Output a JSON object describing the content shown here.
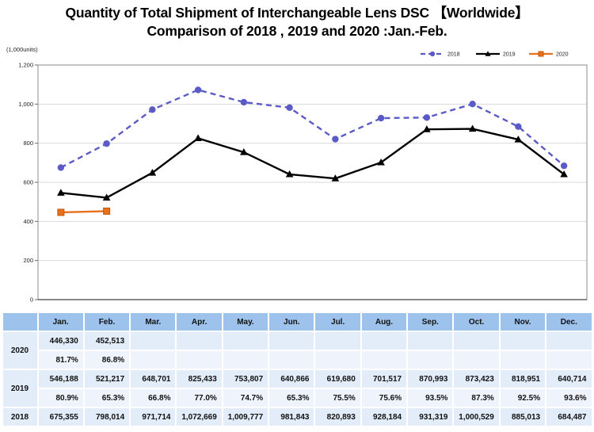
{
  "title": {
    "line1": "Quantity of Total Shipment of Interchangeable Lens DSC 【Worldwide】",
    "line2": "Comparison of 2018 , 2019 and 2020 :Jan.-Feb."
  },
  "chart": {
    "unit_label": "(1,000units)",
    "y_ticks": [
      {
        "value": 0,
        "label": "0"
      },
      {
        "value": 200,
        "label": "200"
      },
      {
        "value": 400,
        "label": "400"
      },
      {
        "value": 600,
        "label": "600"
      },
      {
        "value": 800,
        "label": "800"
      },
      {
        "value": 1000,
        "label": "1,000"
      },
      {
        "value": 1200,
        "label": "1,200"
      }
    ]
  },
  "chart_data": {
    "type": "line",
    "categories": [
      "Jan.",
      "Feb.",
      "Mar.",
      "Apr.",
      "May.",
      "Jun.",
      "Jul.",
      "Aug.",
      "Sep.",
      "Oct.",
      "Nov.",
      "Dec."
    ],
    "title": "Quantity of Total Shipment of Interchangeable Lens DSC 【Worldwide】 Comparison of 2018 , 2019 and 2020 :Jan.-Feb.",
    "xlabel": "",
    "ylabel": "(1,000units)",
    "ylim": [
      0,
      1200
    ],
    "y_tick_step": 200,
    "grid": true,
    "legend_position": "top-right",
    "series": [
      {
        "name": "2018",
        "color": "#5B5BC8",
        "style": "dashed",
        "marker": "circle",
        "values": [
          675.355,
          798.014,
          971.714,
          1072.669,
          1009.777,
          981.843,
          820.893,
          928.184,
          931.319,
          1000.529,
          885.013,
          684.487
        ]
      },
      {
        "name": "2019",
        "color": "#000000",
        "style": "solid",
        "marker": "triangle",
        "values": [
          546.188,
          521.217,
          648.701,
          825.433,
          753.807,
          640.866,
          619.68,
          701.517,
          870.993,
          873.423,
          818.951,
          640.714
        ]
      },
      {
        "name": "2020",
        "color": "#E8701A",
        "style": "solid",
        "marker": "square",
        "values": [
          446.33,
          452.513
        ]
      }
    ]
  },
  "table": {
    "corner_label": "",
    "columns": [
      "Jan.",
      "Feb.",
      "Mar.",
      "Apr.",
      "May.",
      "Jun.",
      "Jul.",
      "Aug.",
      "Sep.",
      "Oct.",
      "Nov.",
      "Dec."
    ],
    "groups": [
      {
        "year": "2020",
        "values": [
          "446,330",
          "452,513",
          "",
          "",
          "",
          "",
          "",
          "",
          "",
          "",
          "",
          ""
        ],
        "percentages": [
          "81.7%",
          "86.8%",
          "",
          "",
          "",
          "",
          "",
          "",
          "",
          "",
          "",
          ""
        ]
      },
      {
        "year": "2019",
        "values": [
          "546,188",
          "521,217",
          "648,701",
          "825,433",
          "753,807",
          "640,866",
          "619,680",
          "701,517",
          "870,993",
          "873,423",
          "818,951",
          "640,714"
        ],
        "percentages": [
          "80.9%",
          "65.3%",
          "66.8%",
          "77.0%",
          "74.7%",
          "65.3%",
          "75.5%",
          "75.6%",
          "93.5%",
          "87.3%",
          "92.5%",
          "93.6%"
        ]
      },
      {
        "year": "2018",
        "values": [
          "675,355",
          "798,014",
          "971,714",
          "1,072,669",
          "1,009,777",
          "981,843",
          "820,893",
          "928,184",
          "931,319",
          "1,000,529",
          "885,013",
          "684,487"
        ],
        "percentages": null
      }
    ]
  },
  "colors": {
    "grid": "#D9D9D9",
    "plot_border": "#8C8C8C",
    "axis": "#444444",
    "tick": "#666666",
    "text": "#222222",
    "header_bg": "#9DC3EC",
    "value_row_bg": "#E3ECF9",
    "percent_row_bg": "#EFF4FC",
    "square_marker_border": "#C05A10"
  }
}
